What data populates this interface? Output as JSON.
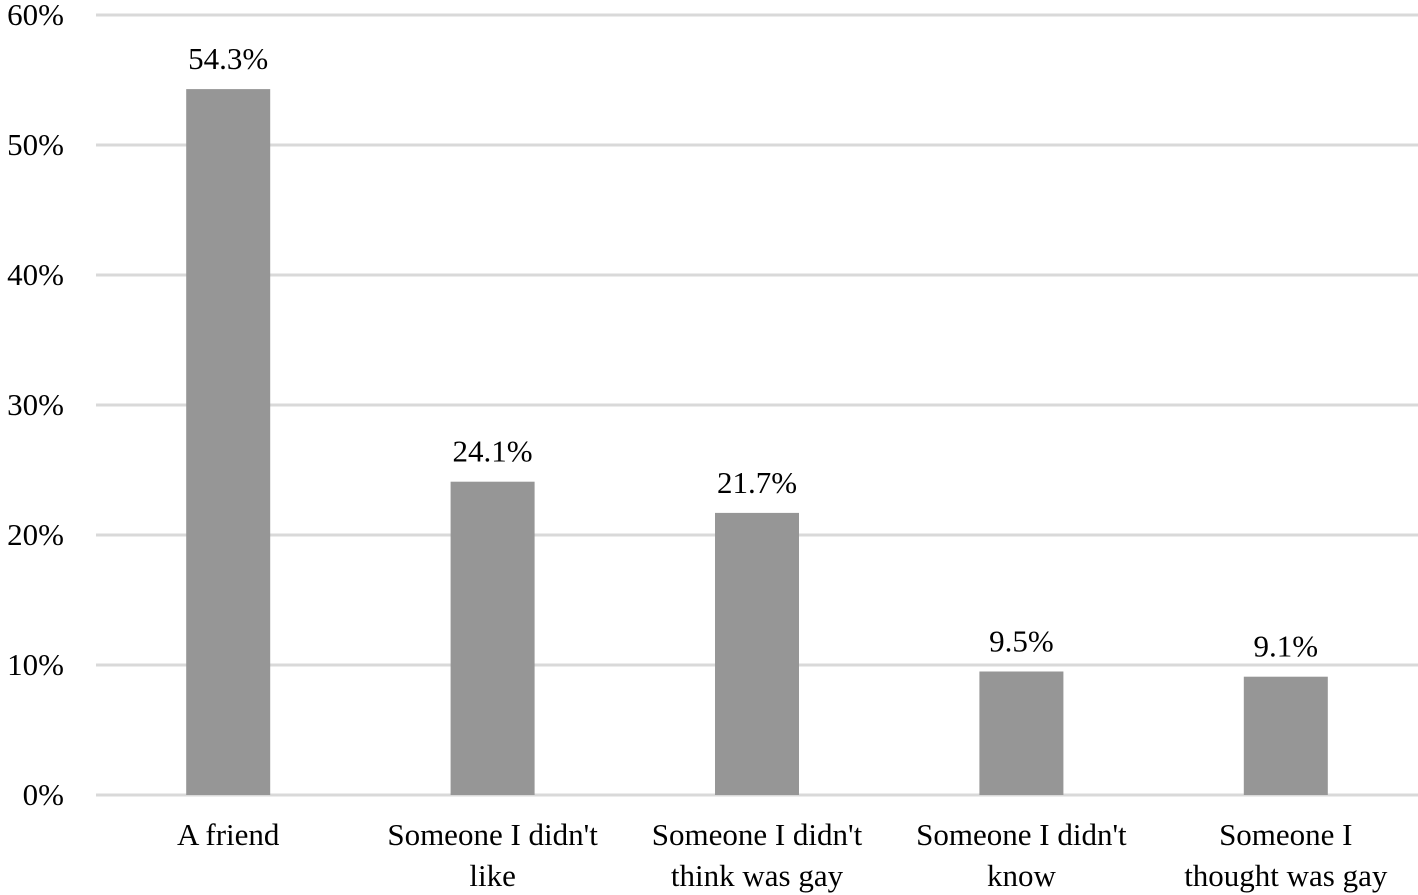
{
  "chart_data": {
    "type": "bar",
    "categories": [
      [
        "A friend"
      ],
      [
        "Someone I didn't",
        "like"
      ],
      [
        "Someone I didn't",
        "think was gay"
      ],
      [
        "Someone I didn't",
        "know"
      ],
      [
        "Someone I",
        "thought was gay"
      ]
    ],
    "values": [
      54.3,
      24.1,
      21.7,
      9.5,
      9.1
    ],
    "data_labels": [
      "54.3%",
      "24.1%",
      "21.7%",
      "9.5%",
      "9.1%"
    ],
    "y_ticks": [
      {
        "value": 0,
        "label": "0%"
      },
      {
        "value": 10,
        "label": "10%"
      },
      {
        "value": 20,
        "label": "20%"
      },
      {
        "value": 30,
        "label": "30%"
      },
      {
        "value": 40,
        "label": "40%"
      },
      {
        "value": 50,
        "label": "50%"
      },
      {
        "value": 60,
        "label": "60%"
      }
    ],
    "ylim": [
      0,
      60
    ],
    "grid": true,
    "legend": "none",
    "title": "",
    "xlabel": "",
    "ylabel": "",
    "colors": {
      "bar": "#969696",
      "grid": "#d9d9d9",
      "text": "#000000"
    }
  }
}
